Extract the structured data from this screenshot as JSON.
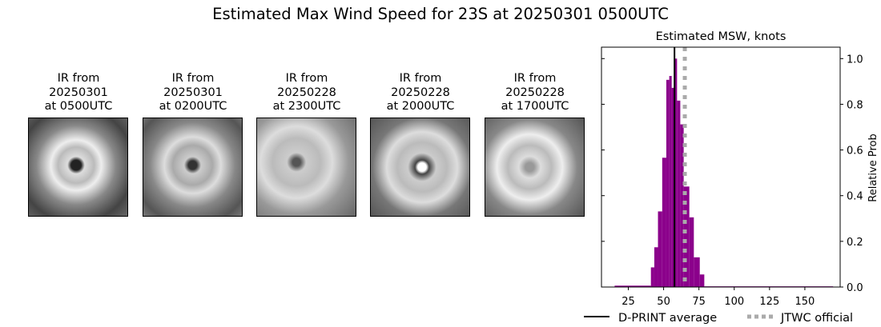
{
  "title": "Estimated Max Wind Speed for 23S at 20250301 0500UTC",
  "thumbnails": [
    {
      "line1": "IR from",
      "line2": "20250301",
      "line3": "at 0500UTC"
    },
    {
      "line1": "IR from",
      "line2": "20250301",
      "line3": "at 0200UTC"
    },
    {
      "line1": "IR from",
      "line2": "20250228",
      "line3": "at 2300UTC"
    },
    {
      "line1": "IR from",
      "line2": "20250228",
      "line3": "at 2000UTC"
    },
    {
      "line1": "IR from",
      "line2": "20250228",
      "line3": "at 1700UTC"
    }
  ],
  "chart_data": {
    "type": "bar",
    "title": "Estimated MSW, knots",
    "xlabel": "",
    "ylabel": "Relative Prob",
    "xlim": [
      6,
      175
    ],
    "ylim": [
      0,
      1.05
    ],
    "xticks": [
      25,
      50,
      75,
      100,
      125,
      150
    ],
    "yticks": [
      0.0,
      0.2,
      0.4,
      0.6,
      0.8,
      1.0
    ],
    "bar_color": "#8b008b",
    "bins": [
      {
        "x0": 15.3,
        "x1": 41.0,
        "value": 0.006
      },
      {
        "x0": 41.0,
        "x1": 43.4,
        "value": 0.086
      },
      {
        "x0": 43.4,
        "x1": 46.0,
        "value": 0.174
      },
      {
        "x0": 46.0,
        "x1": 49.0,
        "value": 0.331
      },
      {
        "x0": 49.0,
        "x1": 51.9,
        "value": 0.566
      },
      {
        "x0": 51.9,
        "x1": 54.0,
        "value": 0.907
      },
      {
        "x0": 54.0,
        "x1": 55.7,
        "value": 0.924
      },
      {
        "x0": 55.7,
        "x1": 57.6,
        "value": 0.872
      },
      {
        "x0": 57.6,
        "x1": 59.5,
        "value": 1.0
      },
      {
        "x0": 59.5,
        "x1": 61.8,
        "value": 0.816
      },
      {
        "x0": 61.8,
        "x1": 64.2,
        "value": 0.712
      },
      {
        "x0": 64.2,
        "x1": 68.2,
        "value": 0.44
      },
      {
        "x0": 68.2,
        "x1": 71.4,
        "value": 0.305
      },
      {
        "x0": 71.4,
        "x1": 75.6,
        "value": 0.13
      },
      {
        "x0": 75.6,
        "x1": 78.8,
        "value": 0.055
      },
      {
        "x0": 78.8,
        "x1": 170.0,
        "value": 0.003
      }
    ],
    "dprint_average": 57.7,
    "jtwc_official": 65,
    "legend": [
      {
        "label": "D-PRINT average",
        "color": "#000000",
        "style": "solid"
      },
      {
        "label": "JTWC official",
        "color": "#aaaaaa",
        "style": "dotted"
      }
    ],
    "legend_position": "bottom"
  }
}
